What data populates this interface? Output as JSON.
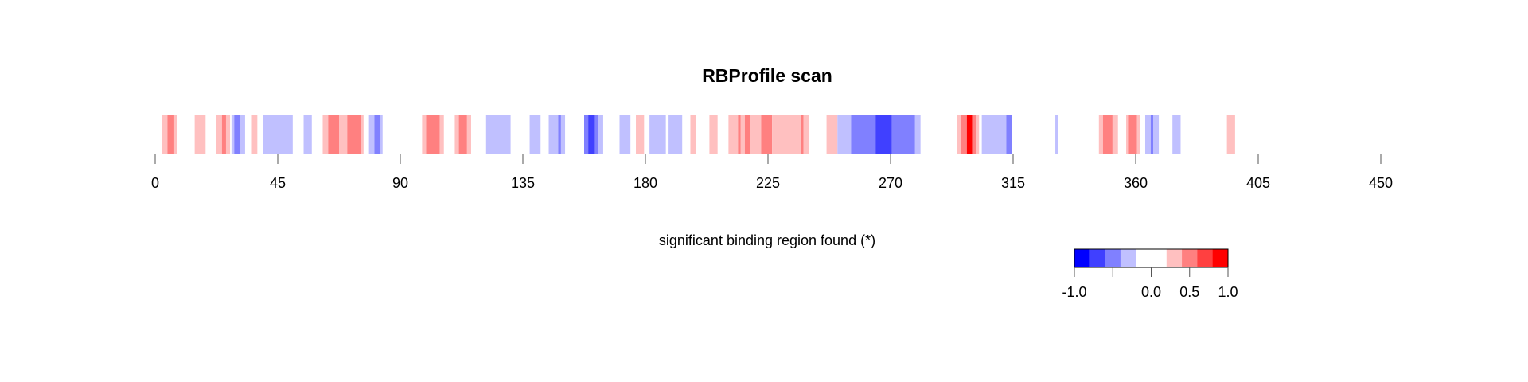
{
  "chart_data": {
    "type": "heatmap",
    "title": "RBProfile scan",
    "annotation": "significant binding region found (*)",
    "x_axis": {
      "range": [
        0,
        450
      ],
      "ticks": [
        0,
        45,
        90,
        135,
        180,
        225,
        270,
        315,
        360,
        405,
        450
      ],
      "tick_labels": [
        "0",
        "45",
        "90",
        "135",
        "180",
        "225",
        "270",
        "315",
        "360",
        "405",
        "450"
      ]
    },
    "grid": false,
    "color_scale": {
      "range": [
        -1.0,
        1.0
      ],
      "breaks": [
        -1.0,
        -0.8,
        -0.6,
        -0.4,
        -0.2,
        0.0,
        0.2,
        0.4,
        0.6,
        0.8,
        1.0
      ],
      "colors": [
        "#0000ff",
        "#4040ff",
        "#8080ff",
        "#c0c0ff",
        "#ffffff",
        "#ffffff",
        "#ffc0c0",
        "#ff8080",
        "#ff4040",
        "#ff0000"
      ],
      "ticks": [
        -1.0,
        -0.5,
        0.0,
        0.5,
        1.0
      ],
      "tick_labels": [
        "-1.0",
        "",
        "0.0",
        "0.5",
        "1.0"
      ]
    },
    "segments": [
      {
        "start": 2.5,
        "end": 4.5,
        "value": 0.3
      },
      {
        "start": 4.5,
        "end": 7.0,
        "value": 0.5
      },
      {
        "start": 7.0,
        "end": 8.0,
        "value": 0.3
      },
      {
        "start": 14.5,
        "end": 18.5,
        "value": 0.3
      },
      {
        "start": 22.5,
        "end": 24.5,
        "value": 0.3
      },
      {
        "start": 24.5,
        "end": 26.0,
        "value": 0.5
      },
      {
        "start": 26.0,
        "end": 27.5,
        "value": 0.3
      },
      {
        "start": 28.0,
        "end": 29.0,
        "value": -0.3
      },
      {
        "start": 29.0,
        "end": 31.0,
        "value": -0.5
      },
      {
        "start": 31.0,
        "end": 33.0,
        "value": -0.3
      },
      {
        "start": 35.5,
        "end": 37.5,
        "value": 0.3
      },
      {
        "start": 39.5,
        "end": 50.5,
        "value": -0.3
      },
      {
        "start": 54.5,
        "end": 57.5,
        "value": -0.3
      },
      {
        "start": 61.5,
        "end": 63.5,
        "value": 0.3
      },
      {
        "start": 63.5,
        "end": 67.5,
        "value": 0.5
      },
      {
        "start": 67.5,
        "end": 70.5,
        "value": 0.3
      },
      {
        "start": 70.5,
        "end": 75.5,
        "value": 0.5
      },
      {
        "start": 75.5,
        "end": 76.5,
        "value": 0.3
      },
      {
        "start": 78.5,
        "end": 80.5,
        "value": -0.3
      },
      {
        "start": 80.5,
        "end": 82.5,
        "value": -0.5
      },
      {
        "start": 82.5,
        "end": 83.5,
        "value": -0.3
      },
      {
        "start": 98.0,
        "end": 99.5,
        "value": 0.3
      },
      {
        "start": 99.5,
        "end": 104.5,
        "value": 0.5
      },
      {
        "start": 104.5,
        "end": 106.0,
        "value": 0.3
      },
      {
        "start": 110.0,
        "end": 111.5,
        "value": 0.3
      },
      {
        "start": 111.5,
        "end": 114.5,
        "value": 0.5
      },
      {
        "start": 114.5,
        "end": 116.0,
        "value": 0.3
      },
      {
        "start": 121.5,
        "end": 130.5,
        "value": -0.3
      },
      {
        "start": 137.5,
        "end": 141.5,
        "value": -0.3
      },
      {
        "start": 144.5,
        "end": 148.0,
        "value": -0.3
      },
      {
        "start": 148.0,
        "end": 149.0,
        "value": -0.5
      },
      {
        "start": 149.0,
        "end": 150.5,
        "value": -0.3
      },
      {
        "start": 157.5,
        "end": 159.0,
        "value": -0.5
      },
      {
        "start": 159.0,
        "end": 161.5,
        "value": -0.8
      },
      {
        "start": 161.5,
        "end": 162.5,
        "value": -0.5
      },
      {
        "start": 162.5,
        "end": 164.5,
        "value": -0.3
      },
      {
        "start": 170.5,
        "end": 174.5,
        "value": -0.3
      },
      {
        "start": 176.5,
        "end": 179.5,
        "value": 0.3
      },
      {
        "start": 181.5,
        "end": 187.5,
        "value": -0.3
      },
      {
        "start": 188.5,
        "end": 193.5,
        "value": -0.3
      },
      {
        "start": 196.5,
        "end": 198.5,
        "value": 0.3
      },
      {
        "start": 203.5,
        "end": 206.5,
        "value": 0.3
      },
      {
        "start": 210.5,
        "end": 214.0,
        "value": 0.3
      },
      {
        "start": 214.0,
        "end": 215.0,
        "value": 0.5
      },
      {
        "start": 215.0,
        "end": 216.5,
        "value": 0.3
      },
      {
        "start": 216.5,
        "end": 218.5,
        "value": 0.5
      },
      {
        "start": 218.5,
        "end": 222.5,
        "value": 0.3
      },
      {
        "start": 222.5,
        "end": 226.5,
        "value": 0.5
      },
      {
        "start": 226.5,
        "end": 237.0,
        "value": 0.3
      },
      {
        "start": 237.0,
        "end": 238.0,
        "value": 0.5
      },
      {
        "start": 238.0,
        "end": 240.0,
        "value": 0.3
      },
      {
        "start": 246.5,
        "end": 250.5,
        "value": 0.3
      },
      {
        "start": 250.5,
        "end": 255.5,
        "value": -0.3
      },
      {
        "start": 255.5,
        "end": 264.5,
        "value": -0.5
      },
      {
        "start": 264.5,
        "end": 270.5,
        "value": -0.8
      },
      {
        "start": 270.5,
        "end": 279.0,
        "value": -0.5
      },
      {
        "start": 279.0,
        "end": 281.0,
        "value": -0.3
      },
      {
        "start": 294.5,
        "end": 296.0,
        "value": 0.3
      },
      {
        "start": 296.0,
        "end": 298.0,
        "value": 0.5
      },
      {
        "start": 298.0,
        "end": 300.0,
        "value": 0.8
      },
      {
        "start": 300.0,
        "end": 301.5,
        "value": 0.5
      },
      {
        "start": 301.5,
        "end": 302.5,
        "value": 0.3
      },
      {
        "start": 303.5,
        "end": 312.5,
        "value": -0.3
      },
      {
        "start": 312.5,
        "end": 314.5,
        "value": -0.5
      },
      {
        "start": 330.5,
        "end": 331.5,
        "value": -0.3
      },
      {
        "start": 346.5,
        "end": 348.0,
        "value": 0.3
      },
      {
        "start": 348.0,
        "end": 351.5,
        "value": 0.5
      },
      {
        "start": 351.5,
        "end": 353.5,
        "value": 0.3
      },
      {
        "start": 356.5,
        "end": 357.5,
        "value": 0.3
      },
      {
        "start": 357.5,
        "end": 360.5,
        "value": 0.5
      },
      {
        "start": 360.5,
        "end": 361.5,
        "value": 0.3
      },
      {
        "start": 363.5,
        "end": 365.5,
        "value": -0.3
      },
      {
        "start": 365.5,
        "end": 366.5,
        "value": -0.5
      },
      {
        "start": 366.5,
        "end": 368.5,
        "value": -0.3
      },
      {
        "start": 373.5,
        "end": 376.5,
        "value": -0.3
      },
      {
        "start": 393.5,
        "end": 396.5,
        "value": 0.3
      }
    ]
  }
}
